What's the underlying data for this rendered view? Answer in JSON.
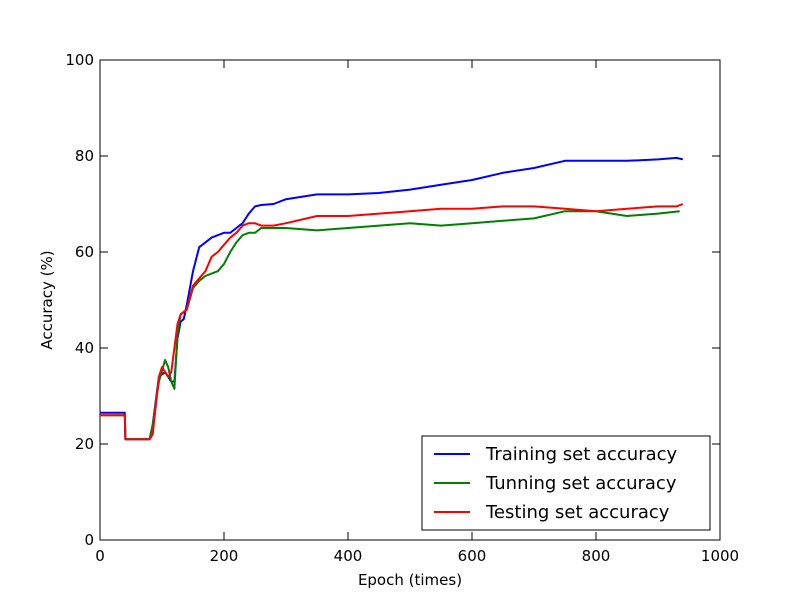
{
  "chart_data": {
    "type": "line",
    "xlabel": "Epoch (times)",
    "ylabel": "Accuracy (%)",
    "xlim": [
      0,
      1000
    ],
    "ylim": [
      0,
      100
    ],
    "x_ticks": [
      "0",
      "200",
      "400",
      "600",
      "800",
      "1000"
    ],
    "y_ticks": [
      "0",
      "20",
      "40",
      "60",
      "80",
      "100"
    ],
    "grid": false,
    "legend_position": "lower-right",
    "series": [
      {
        "name": "Training set accuracy",
        "color": "#0000ff",
        "x": [
          0,
          40,
          41,
          80,
          85,
          95,
          105,
          115,
          120,
          125,
          130,
          135,
          140,
          150,
          160,
          170,
          180,
          190,
          200,
          210,
          220,
          230,
          240,
          250,
          260,
          280,
          300,
          350,
          400,
          450,
          500,
          550,
          600,
          650,
          700,
          750,
          800,
          850,
          900,
          920,
          930,
          940
        ],
        "y": [
          26.5,
          26.5,
          21,
          21,
          24,
          34,
          35,
          33,
          33,
          42,
          45.5,
          46,
          49,
          56,
          61,
          62,
          63,
          63.5,
          64,
          64,
          65,
          66,
          68,
          69.5,
          69.8,
          70,
          71,
          72,
          72,
          72.3,
          73,
          74,
          75,
          76.5,
          77.5,
          79,
          79,
          79,
          79.3,
          79.5,
          79.6,
          79.3
        ]
      },
      {
        "name": "Tunning set accuracy",
        "color": "#008000",
        "x": [
          0,
          40,
          41,
          80,
          85,
          95,
          105,
          110,
          115,
          120,
          125,
          130,
          140,
          150,
          160,
          170,
          180,
          190,
          200,
          210,
          220,
          230,
          240,
          250,
          260,
          300,
          350,
          400,
          450,
          500,
          550,
          600,
          650,
          700,
          750,
          800,
          850,
          900,
          935
        ],
        "y": [
          26,
          26,
          21,
          21,
          24,
          33,
          37.5,
          36,
          33,
          31.5,
          43,
          47,
          48,
          52.5,
          54,
          55,
          55.5,
          56,
          57.5,
          60,
          62,
          63.5,
          64,
          64,
          65,
          65,
          64.5,
          65,
          65.5,
          66,
          65.5,
          66,
          66.5,
          67,
          68.5,
          68.5,
          67.5,
          68,
          68.5
        ]
      },
      {
        "name": "Testing set accuracy",
        "color": "#ff0000",
        "x": [
          0,
          40,
          41,
          80,
          85,
          95,
          100,
          110,
          115,
          125,
          130,
          140,
          150,
          160,
          170,
          180,
          190,
          200,
          210,
          220,
          230,
          240,
          250,
          260,
          280,
          300,
          350,
          400,
          450,
          500,
          550,
          600,
          650,
          700,
          750,
          800,
          850,
          900,
          930,
          940
        ],
        "y": [
          26,
          26,
          21,
          21,
          22,
          34,
          36,
          34,
          35,
          45,
          47,
          48,
          53,
          54.5,
          56,
          59,
          60,
          61.5,
          63,
          64,
          65.5,
          66,
          66,
          65.5,
          65.5,
          66,
          67.5,
          67.5,
          68,
          68.5,
          69,
          69,
          69.5,
          69.5,
          69,
          68.5,
          69,
          69.5,
          69.5,
          70
        ]
      }
    ]
  }
}
